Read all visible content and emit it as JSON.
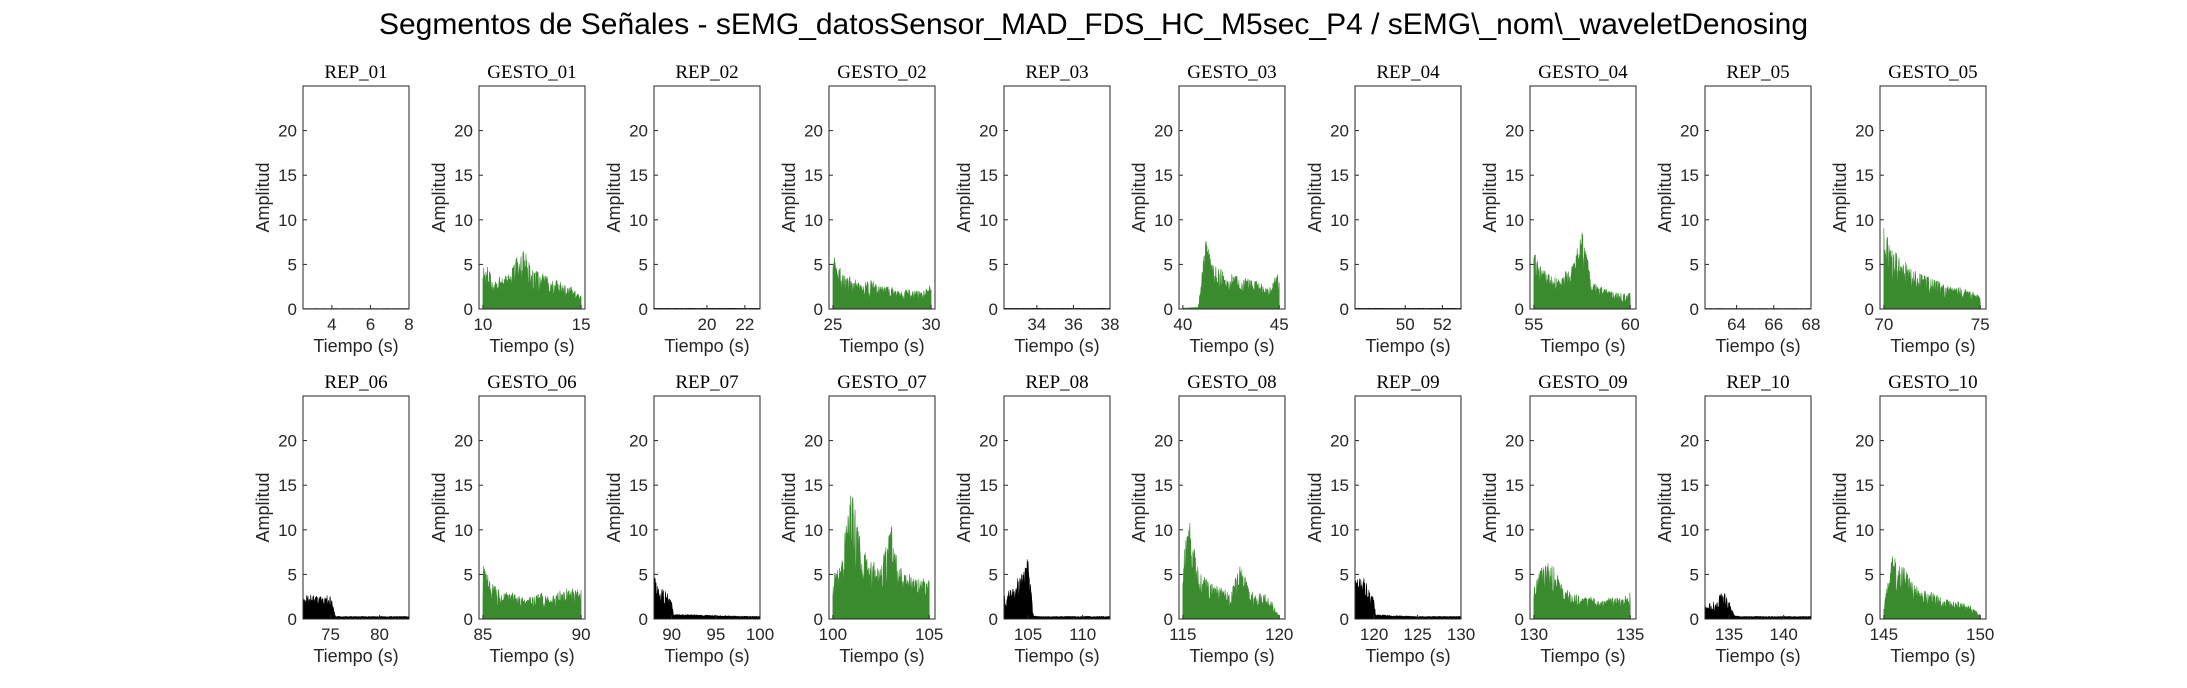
{
  "figure": {
    "title": "Segmentos de Señales - sEMG_datosSensor_MAD_FDS_HC_M5sec_P4 / sEMG\\_nom\\_waveletDenosing"
  },
  "colors": {
    "rep": "#000000",
    "gesto": "#3a8a2e",
    "axes": "#262626"
  },
  "chart_data": [
    {
      "type": "area",
      "title": "REP_01",
      "xlabel": "Tiempo (s)",
      "ylabel": "Amplitud",
      "xlim": [
        2.5,
        8
      ],
      "ylim": [
        0,
        25
      ],
      "xticks": [
        4,
        6,
        8
      ],
      "yticks": [
        0,
        5,
        10,
        15,
        20
      ],
      "series": [
        {
          "color": "#000000",
          "x": [
            2.5,
            8
          ],
          "y": [
            0.05,
            0.05
          ]
        }
      ]
    },
    {
      "type": "area",
      "title": "GESTO_01",
      "xlabel": "Tiempo (s)",
      "ylabel": "Amplitud",
      "xlim": [
        9.8,
        15.2
      ],
      "ylim": [
        0,
        25
      ],
      "xticks": [
        10,
        15
      ],
      "yticks": [
        0,
        5,
        10,
        15,
        20
      ],
      "series": [
        {
          "color": "#3a8a2e",
          "x": [
            10,
            10.5,
            11,
            11.5,
            12,
            12.5,
            13,
            13.5,
            14,
            14.5,
            15
          ],
          "y": [
            5.8,
            3.5,
            4.0,
            5.0,
            7.3,
            4.5,
            4.0,
            3.5,
            3.0,
            2.5,
            1.5
          ]
        }
      ]
    },
    {
      "type": "area",
      "title": "REP_02",
      "xlabel": "Tiempo (s)",
      "ylabel": "Amplitud",
      "xlim": [
        17.2,
        22.8
      ],
      "ylim": [
        0,
        25
      ],
      "xticks": [
        20,
        22
      ],
      "yticks": [
        0,
        5,
        10,
        15,
        20
      ],
      "series": [
        {
          "color": "#000000",
          "x": [
            17.2,
            22.8
          ],
          "y": [
            0.08,
            0.08
          ]
        }
      ]
    },
    {
      "type": "area",
      "title": "GESTO_02",
      "xlabel": "Tiempo (s)",
      "ylabel": "Amplitud",
      "xlim": [
        24.8,
        30.2
      ],
      "ylim": [
        0,
        25
      ],
      "xticks": [
        25,
        30
      ],
      "yticks": [
        0,
        5,
        10,
        15,
        20
      ],
      "series": [
        {
          "color": "#3a8a2e",
          "x": [
            25,
            25.5,
            26,
            26.5,
            27,
            27.5,
            28,
            28.5,
            29,
            29.5,
            30
          ],
          "y": [
            6.3,
            4.0,
            3.5,
            3.0,
            3.2,
            2.5,
            2.5,
            2.0,
            2.3,
            2.0,
            2.8
          ]
        }
      ]
    },
    {
      "type": "area",
      "title": "REP_03",
      "xlabel": "Tiempo (s)",
      "ylabel": "Amplitud",
      "xlim": [
        32.2,
        38
      ],
      "ylim": [
        0,
        25
      ],
      "xticks": [
        34,
        36,
        38
      ],
      "yticks": [
        0,
        5,
        10,
        15,
        20
      ],
      "series": [
        {
          "color": "#000000",
          "x": [
            32.2,
            38
          ],
          "y": [
            0.08,
            0.08
          ]
        }
      ]
    },
    {
      "type": "area",
      "title": "GESTO_03",
      "xlabel": "Tiempo (s)",
      "ylabel": "Amplitud",
      "xlim": [
        39.8,
        45.3
      ],
      "ylim": [
        0,
        25
      ],
      "xticks": [
        40,
        45
      ],
      "yticks": [
        0,
        5,
        10,
        15,
        20
      ],
      "series": [
        {
          "color": "#3a8a2e",
          "x": [
            40,
            40.8,
            41.2,
            41.5,
            42,
            42.5,
            43,
            43.5,
            44,
            44.5,
            45
          ],
          "y": [
            0.1,
            0.2,
            8.5,
            5.0,
            4.5,
            4.0,
            3.5,
            3.5,
            3.0,
            2.5,
            4.5
          ]
        }
      ]
    },
    {
      "type": "area",
      "title": "REP_04",
      "xlabel": "Tiempo (s)",
      "ylabel": "Amplitud",
      "xlim": [
        47.3,
        53
      ],
      "ylim": [
        0,
        25
      ],
      "xticks": [
        50,
        52
      ],
      "yticks": [
        0,
        5,
        10,
        15,
        20
      ],
      "series": [
        {
          "color": "#000000",
          "x": [
            47.3,
            53
          ],
          "y": [
            0.08,
            0.08
          ]
        }
      ]
    },
    {
      "type": "area",
      "title": "GESTO_04",
      "xlabel": "Tiempo (s)",
      "ylabel": "Amplitud",
      "xlim": [
        54.8,
        60.3
      ],
      "ylim": [
        0,
        25
      ],
      "xticks": [
        55,
        60
      ],
      "yticks": [
        0,
        5,
        10,
        15,
        20
      ],
      "series": [
        {
          "color": "#3a8a2e",
          "x": [
            55,
            55.5,
            56,
            56.5,
            57,
            57.5,
            58,
            58.5,
            59,
            59.5,
            60
          ],
          "y": [
            6.6,
            4.5,
            3.5,
            4.0,
            5.0,
            9.0,
            3.0,
            2.5,
            2.0,
            1.8,
            2.0
          ]
        }
      ]
    },
    {
      "type": "area",
      "title": "REP_05",
      "xlabel": "Tiempo (s)",
      "ylabel": "Amplitud",
      "xlim": [
        62.3,
        68
      ],
      "ylim": [
        0,
        25
      ],
      "xticks": [
        64,
        66,
        68
      ],
      "yticks": [
        0,
        5,
        10,
        15,
        20
      ],
      "series": [
        {
          "color": "#000000",
          "x": [
            62.3,
            68
          ],
          "y": [
            0.06,
            0.06
          ]
        }
      ]
    },
    {
      "type": "area",
      "title": "GESTO_05",
      "xlabel": "Tiempo (s)",
      "ylabel": "Amplitud",
      "xlim": [
        69.8,
        75.3
      ],
      "ylim": [
        0,
        25
      ],
      "xticks": [
        70,
        75
      ],
      "yticks": [
        0,
        5,
        10,
        15,
        20
      ],
      "series": [
        {
          "color": "#3a8a2e",
          "x": [
            70,
            70.3,
            70.8,
            71.5,
            72,
            72.5,
            73,
            73.5,
            74,
            74.5,
            75
          ],
          "y": [
            9.8,
            7.0,
            6.0,
            4.5,
            4.0,
            3.5,
            3.0,
            2.5,
            2.5,
            2.0,
            1.8
          ]
        }
      ]
    },
    {
      "type": "area",
      "title": "REP_06",
      "xlabel": "Tiempo (s)",
      "ylabel": "Amplitud",
      "xlim": [
        72.2,
        83
      ],
      "ylim": [
        0,
        25
      ],
      "xticks": [
        75,
        80
      ],
      "yticks": [
        0,
        5,
        10,
        15,
        20
      ],
      "series": [
        {
          "color": "#000000",
          "x": [
            72.2,
            73,
            74,
            75,
            75.5,
            76,
            78,
            80,
            83
          ],
          "y": [
            2.7,
            2.9,
            2.6,
            2.8,
            0.3,
            0.3,
            0.3,
            0.3,
            0.3
          ]
        }
      ]
    },
    {
      "type": "area",
      "title": "GESTO_06",
      "xlabel": "Tiempo (s)",
      "ylabel": "Amplitud",
      "xlim": [
        84.8,
        90.2
      ],
      "ylim": [
        0,
        25
      ],
      "xticks": [
        85,
        90
      ],
      "yticks": [
        0,
        5,
        10,
        15,
        20
      ],
      "series": [
        {
          "color": "#3a8a2e",
          "x": [
            85,
            85.5,
            86,
            86.5,
            87,
            87.5,
            88,
            88.5,
            89,
            89.5,
            90
          ],
          "y": [
            6.2,
            4.0,
            3.0,
            3.0,
            2.5,
            2.5,
            3.0,
            2.5,
            3.5,
            3.5,
            3.5
          ]
        }
      ]
    },
    {
      "type": "area",
      "title": "REP_07",
      "xlabel": "Tiempo (s)",
      "ylabel": "Amplitud",
      "xlim": [
        88,
        100
      ],
      "ylim": [
        0,
        25
      ],
      "xticks": [
        90,
        95,
        100
      ],
      "yticks": [
        0,
        5,
        10,
        15,
        20
      ],
      "series": [
        {
          "color": "#000000",
          "x": [
            88,
            88.5,
            89,
            89.5,
            90,
            90.2,
            92,
            95,
            100
          ],
          "y": [
            5.0,
            4.0,
            3.5,
            3.0,
            2.0,
            0.5,
            0.5,
            0.4,
            0.3
          ]
        }
      ]
    },
    {
      "type": "area",
      "title": "GESTO_07",
      "xlabel": "Tiempo (s)",
      "ylabel": "Amplitud",
      "xlim": [
        99.8,
        105.3
      ],
      "ylim": [
        0,
        25
      ],
      "xticks": [
        100,
        105
      ],
      "yticks": [
        0,
        5,
        10,
        15,
        20
      ],
      "series": [
        {
          "color": "#3a8a2e",
          "x": [
            100,
            100.5,
            100.9,
            101.5,
            102,
            102.5,
            103,
            103.5,
            104,
            104.5,
            105
          ],
          "y": [
            5.0,
            7.0,
            15.5,
            8.0,
            7.0,
            6.0,
            11.0,
            6.0,
            5.0,
            4.5,
            5.0
          ]
        }
      ]
    },
    {
      "type": "area",
      "title": "REP_08",
      "xlabel": "Tiempo (s)",
      "ylabel": "Amplitud",
      "xlim": [
        102.8,
        112.5
      ],
      "ylim": [
        0,
        25
      ],
      "xticks": [
        105,
        110
      ],
      "yticks": [
        0,
        5,
        10,
        15,
        20
      ],
      "series": [
        {
          "color": "#000000",
          "x": [
            102.8,
            103.5,
            104,
            104.5,
            105,
            105.5,
            106,
            108,
            112.5
          ],
          "y": [
            3.0,
            3.5,
            4.5,
            5.5,
            7.5,
            0.4,
            0.3,
            0.3,
            0.3
          ]
        }
      ]
    },
    {
      "type": "area",
      "title": "GESTO_08",
      "xlabel": "Tiempo (s)",
      "ylabel": "Amplitud",
      "xlim": [
        114.8,
        120.3
      ],
      "ylim": [
        0,
        25
      ],
      "xticks": [
        115,
        120
      ],
      "yticks": [
        0,
        5,
        10,
        15,
        20
      ],
      "series": [
        {
          "color": "#3a8a2e",
          "x": [
            115,
            115.3,
            115.8,
            116.5,
            117,
            117.5,
            118,
            118.5,
            119,
            119.5,
            120
          ],
          "y": [
            7.0,
            11.7,
            6.0,
            4.0,
            3.5,
            3.0,
            6.5,
            3.0,
            3.0,
            2.5,
            0.3
          ]
        }
      ]
    },
    {
      "type": "area",
      "title": "REP_09",
      "xlabel": "Tiempo (s)",
      "ylabel": "Amplitud",
      "xlim": [
        117.8,
        130
      ],
      "ylim": [
        0,
        25
      ],
      "xticks": [
        120,
        125,
        130
      ],
      "yticks": [
        0,
        5,
        10,
        15,
        20
      ],
      "series": [
        {
          "color": "#000000",
          "x": [
            117.8,
            118.5,
            119,
            119.5,
            120,
            120.2,
            122,
            125,
            130
          ],
          "y": [
            5.0,
            5.0,
            4.5,
            4.0,
            2.0,
            0.5,
            0.4,
            0.3,
            0.3
          ]
        }
      ]
    },
    {
      "type": "area",
      "title": "GESTO_09",
      "xlabel": "Tiempo (s)",
      "ylabel": "Amplitud",
      "xlim": [
        129.8,
        135.3
      ],
      "ylim": [
        0,
        25
      ],
      "xticks": [
        130,
        135
      ],
      "yticks": [
        0,
        5,
        10,
        15,
        20
      ],
      "series": [
        {
          "color": "#3a8a2e",
          "x": [
            130,
            130.5,
            131,
            131.5,
            132,
            132.5,
            133,
            133.5,
            134,
            134.5,
            135
          ],
          "y": [
            3.5,
            7.0,
            6.5,
            3.5,
            3.0,
            2.5,
            2.5,
            2.0,
            2.5,
            2.5,
            3.0
          ]
        }
      ]
    },
    {
      "type": "area",
      "title": "REP_10",
      "xlabel": "Tiempo (s)",
      "ylabel": "Amplitud",
      "xlim": [
        132.8,
        142.5
      ],
      "ylim": [
        0,
        25
      ],
      "xticks": [
        135,
        140
      ],
      "yticks": [
        0,
        5,
        10,
        15,
        20
      ],
      "series": [
        {
          "color": "#000000",
          "x": [
            132.8,
            133.5,
            134,
            134.5,
            135,
            135.5,
            136,
            138,
            142.5
          ],
          "y": [
            1.5,
            2.0,
            2.5,
            3.3,
            2.0,
            0.4,
            0.3,
            0.3,
            0.3
          ]
        }
      ]
    },
    {
      "type": "area",
      "title": "GESTO_10",
      "xlabel": "Tiempo (s)",
      "ylabel": "Amplitud",
      "xlim": [
        144.8,
        150.3
      ],
      "ylim": [
        0,
        25
      ],
      "xticks": [
        145,
        150
      ],
      "yticks": [
        0,
        5,
        10,
        15,
        20
      ],
      "series": [
        {
          "color": "#3a8a2e",
          "x": [
            145,
            145.5,
            146,
            146.5,
            147,
            147.5,
            148,
            148.5,
            149,
            149.5,
            150
          ],
          "y": [
            1.5,
            8.0,
            6.0,
            4.0,
            3.5,
            3.0,
            2.5,
            2.0,
            2.0,
            1.5,
            0.5
          ]
        }
      ]
    }
  ]
}
